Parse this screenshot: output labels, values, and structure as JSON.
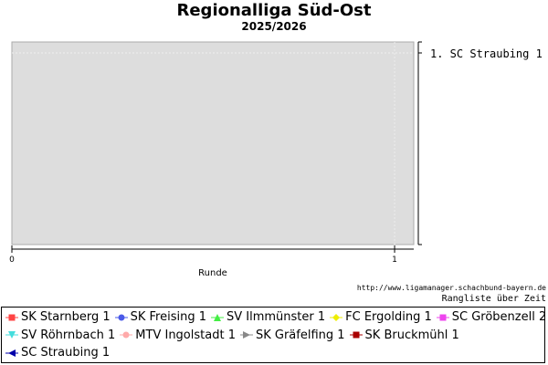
{
  "chart_data": {
    "type": "line",
    "title": "Regionalliga Süd-Ost",
    "subtitle": "2025/2026",
    "xlabel": "Runde",
    "x_ticks": [
      0,
      1
    ],
    "xlim": [
      0,
      1.05
    ],
    "y_label_right": "1. SC Straubing 1",
    "source_url": "http://www.ligamanager.schachbund-bayern.de",
    "caption": "Rangliste über Zeit",
    "series": [
      {
        "name": "SK Starnberg 1",
        "color": "#ff4444",
        "marker": "square"
      },
      {
        "name": "SK Freising 1",
        "color": "#4a5ae8",
        "marker": "circle"
      },
      {
        "name": "SV Ilmmünster 1",
        "color": "#44ee44",
        "marker": "triangle-up"
      },
      {
        "name": "FC Ergolding 1",
        "color": "#eeee00",
        "marker": "diamond"
      },
      {
        "name": "SC Gröbenzell 2",
        "color": "#ee44ee",
        "marker": "square"
      },
      {
        "name": "SV Röhrnbach 1",
        "color": "#44dddd",
        "marker": "triangle-down"
      },
      {
        "name": "MTV Ingolstadt 1",
        "color": "#ffaaaa",
        "marker": "circle"
      },
      {
        "name": "SK Gräfelfing 1",
        "color": "#888888",
        "marker": "triangle-right"
      },
      {
        "name": "SK Bruckmühl 1",
        "color": "#aa0000",
        "marker": "square"
      },
      {
        "name": "SC Straubing 1",
        "color": "#0000aa",
        "marker": "triangle-left"
      }
    ]
  }
}
